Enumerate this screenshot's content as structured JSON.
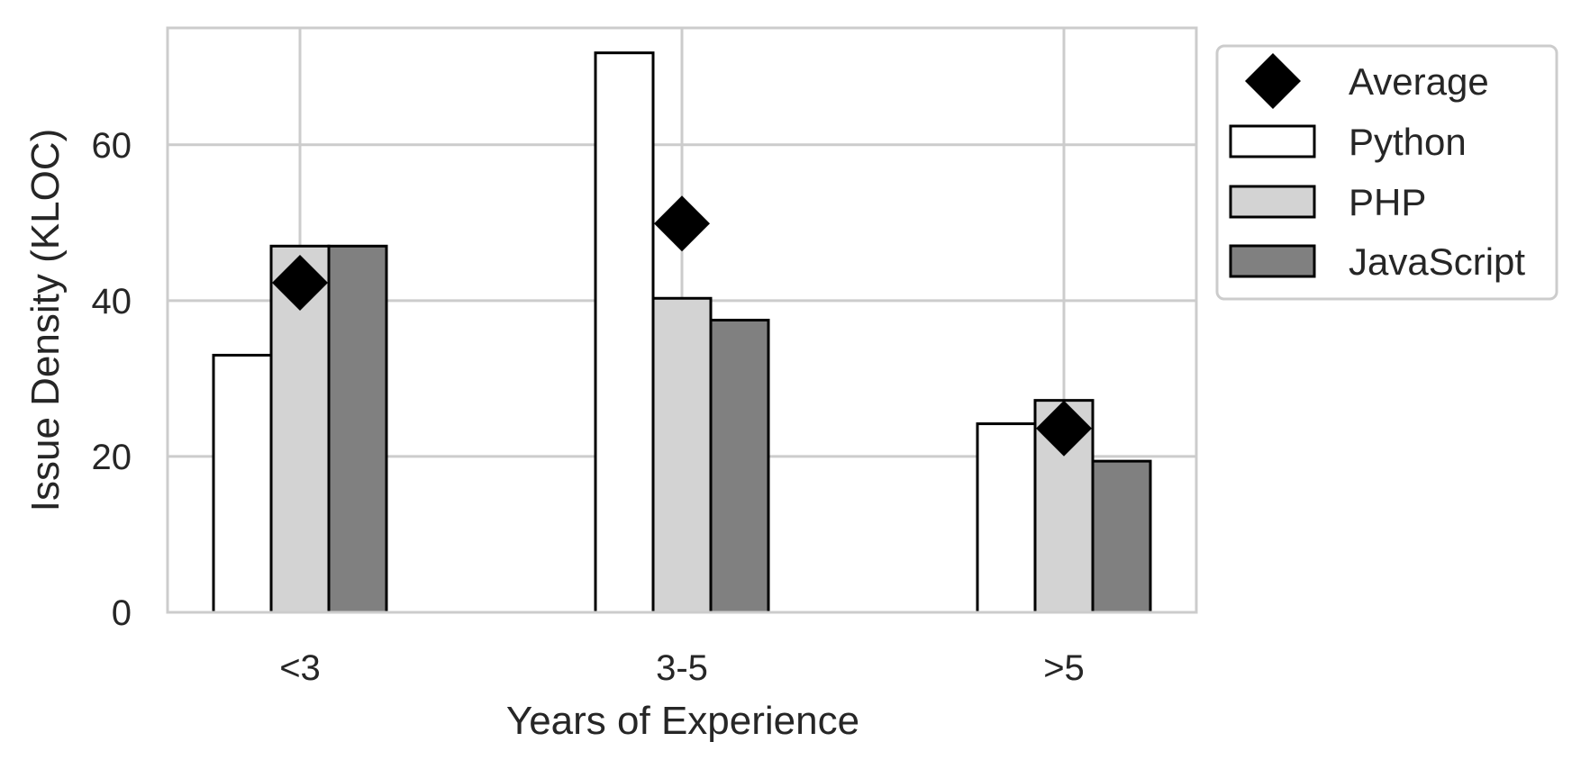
{
  "chart_data": {
    "type": "bar",
    "categories": [
      "<3",
      "3-5",
      ">5"
    ],
    "series": [
      {
        "name": "Python",
        "values": [
          33.0,
          71.8,
          24.2
        ],
        "color": "#ffffff"
      },
      {
        "name": "PHP",
        "values": [
          47.0,
          40.3,
          27.2
        ],
        "color": "#d3d3d3"
      },
      {
        "name": "JavaScript",
        "values": [
          47.0,
          37.5,
          19.4
        ],
        "color": "#808080"
      }
    ],
    "average": {
      "name": "Average",
      "values": [
        42.3,
        49.9,
        23.6
      ],
      "marker": "diamond",
      "color": "#000000"
    },
    "xlabel": "Years of Experience",
    "ylabel": "Issue Density (KLOC)",
    "ylim": [
      0,
      75
    ],
    "yticks": [
      0,
      20,
      40,
      60
    ],
    "grid": true,
    "legend_position": "outside-top-right",
    "edge_color": "#000000",
    "grid_color": "#cccccc"
  }
}
